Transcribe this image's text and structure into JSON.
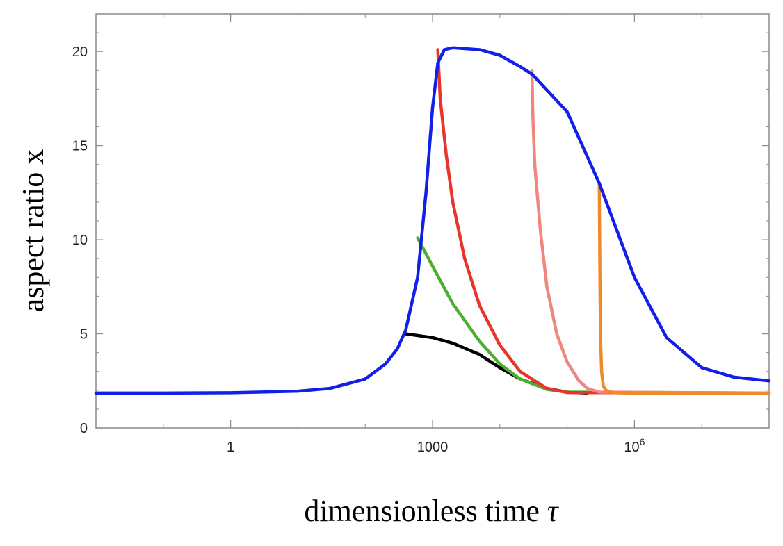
{
  "chart_data": {
    "type": "line",
    "title": "",
    "xlabel": "dimensionless time",
    "xlabel_symbol": "τ",
    "ylabel": "aspect ratio x",
    "xscale": "log",
    "xlim": [
      0.01,
      100000000.0
    ],
    "ylim": [
      0,
      22
    ],
    "x_ticks": [
      {
        "value": 1,
        "label": "1"
      },
      {
        "value": 1000,
        "label": "1000"
      },
      {
        "value": 1000000,
        "label": "10",
        "sup": "6"
      }
    ],
    "y_ticks": [
      {
        "value": 0,
        "label": "0"
      },
      {
        "value": 5,
        "label": "5"
      },
      {
        "value": 10,
        "label": "10"
      },
      {
        "value": 15,
        "label": "15"
      },
      {
        "value": 20,
        "label": "20"
      }
    ],
    "grid": false,
    "frame": true,
    "series": [
      {
        "color": "#1020e8",
        "points": [
          [
            0.01,
            1.85
          ],
          [
            0.1,
            1.85
          ],
          [
            1,
            1.87
          ],
          [
            10,
            1.95
          ],
          [
            30,
            2.1
          ],
          [
            100,
            2.6
          ],
          [
            200,
            3.4
          ],
          [
            300,
            4.2
          ],
          [
            400,
            5.2
          ],
          [
            600,
            8.0
          ],
          [
            800,
            12.5
          ],
          [
            1000,
            17.0
          ],
          [
            1200,
            19.4
          ],
          [
            1500,
            20.1
          ],
          [
            2000,
            20.2
          ],
          [
            5000,
            20.1
          ],
          [
            10000,
            19.8
          ],
          [
            20000,
            19.2
          ],
          [
            30000,
            18.8
          ],
          [
            100000,
            16.8
          ],
          [
            300000,
            13.0
          ],
          [
            1000000,
            8.0
          ],
          [
            3000000,
            4.8
          ],
          [
            10000000,
            3.2
          ],
          [
            30000000,
            2.7
          ],
          [
            100000000,
            2.5
          ]
        ]
      },
      {
        "color": "#000000",
        "points": [
          [
            400,
            5.0
          ],
          [
            1000,
            4.8
          ],
          [
            2000,
            4.5
          ],
          [
            5000,
            3.9
          ],
          [
            10000,
            3.2
          ],
          [
            20000,
            2.6
          ],
          [
            50000,
            2.1
          ],
          [
            100000,
            1.9
          ],
          [
            200000,
            1.85
          ]
        ]
      },
      {
        "color": "#4caf32",
        "points": [
          [
            600,
            10.1
          ],
          [
            1000,
            8.6
          ],
          [
            2000,
            6.6
          ],
          [
            5000,
            4.6
          ],
          [
            10000,
            3.4
          ],
          [
            20000,
            2.6
          ],
          [
            50000,
            2.05
          ],
          [
            100000,
            1.9
          ],
          [
            100000000,
            1.85
          ]
        ]
      },
      {
        "color": "#e8352a",
        "points": [
          [
            1200,
            20.1
          ],
          [
            1300,
            17.5
          ],
          [
            1600,
            14.5
          ],
          [
            2000,
            12.0
          ],
          [
            3000,
            9.0
          ],
          [
            5000,
            6.5
          ],
          [
            10000,
            4.4
          ],
          [
            20000,
            3.0
          ],
          [
            50000,
            2.1
          ],
          [
            100000,
            1.88
          ],
          [
            100000000,
            1.85
          ]
        ]
      },
      {
        "color": "#f0867e",
        "points": [
          [
            30000,
            19.0
          ],
          [
            31000,
            16.5
          ],
          [
            33000,
            14.0
          ],
          [
            40000,
            10.5
          ],
          [
            50000,
            7.5
          ],
          [
            70000,
            5.0
          ],
          [
            100000,
            3.5
          ],
          [
            150000,
            2.5
          ],
          [
            200000,
            2.1
          ],
          [
            300000,
            1.9
          ],
          [
            100000000,
            1.85
          ]
        ]
      },
      {
        "color": "#ef8a2a",
        "points": [
          [
            300000,
            13.0
          ],
          [
            304000,
            10.0
          ],
          [
            308000,
            7.0
          ],
          [
            315000,
            4.5
          ],
          [
            325000,
            3.0
          ],
          [
            345000,
            2.2
          ],
          [
            390000,
            1.95
          ],
          [
            500000,
            1.87
          ],
          [
            1000000,
            1.85
          ],
          [
            100000000,
            1.85
          ]
        ]
      }
    ]
  }
}
